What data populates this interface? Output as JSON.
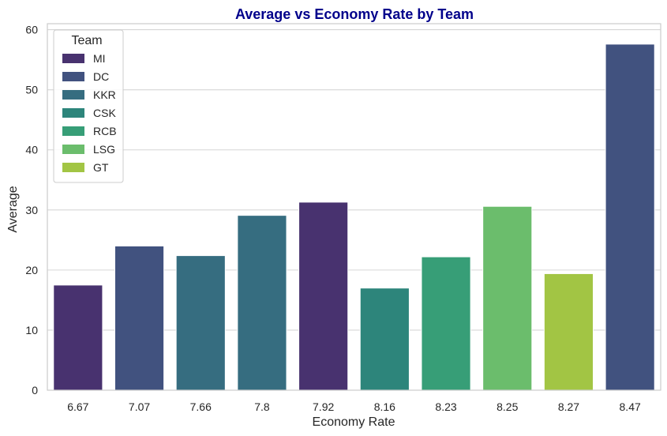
{
  "chart_data": {
    "type": "bar",
    "title": "Average vs Economy Rate by Team",
    "title_color": "#00008B",
    "xlabel": "Economy Rate",
    "ylabel": "Average",
    "ylim": [
      0,
      61
    ],
    "yticks": [
      0,
      10,
      20,
      30,
      40,
      50,
      60
    ],
    "grid": true,
    "categories": [
      "6.67",
      "7.07",
      "7.66",
      "7.8",
      "7.92",
      "8.16",
      "8.23",
      "8.25",
      "8.27",
      "8.47"
    ],
    "values": [
      17.5,
      24.0,
      22.4,
      29.1,
      31.3,
      17.0,
      22.2,
      30.6,
      19.4,
      57.6
    ],
    "teams": [
      "MI",
      "DC",
      "KKR",
      "KKR",
      "MI",
      "CSK",
      "RCB",
      "LSG",
      "GT",
      "DC"
    ],
    "legend": {
      "title": "Team",
      "position": "top-left",
      "entries": [
        {
          "name": "MI",
          "color": "#48326f"
        },
        {
          "name": "DC",
          "color": "#41527f"
        },
        {
          "name": "KKR",
          "color": "#366d80"
        },
        {
          "name": "CSK",
          "color": "#2d857b"
        },
        {
          "name": "RCB",
          "color": "#379e77"
        },
        {
          "name": "LSG",
          "color": "#6bbd6c"
        },
        {
          "name": "GT",
          "color": "#a2c544"
        }
      ]
    }
  }
}
